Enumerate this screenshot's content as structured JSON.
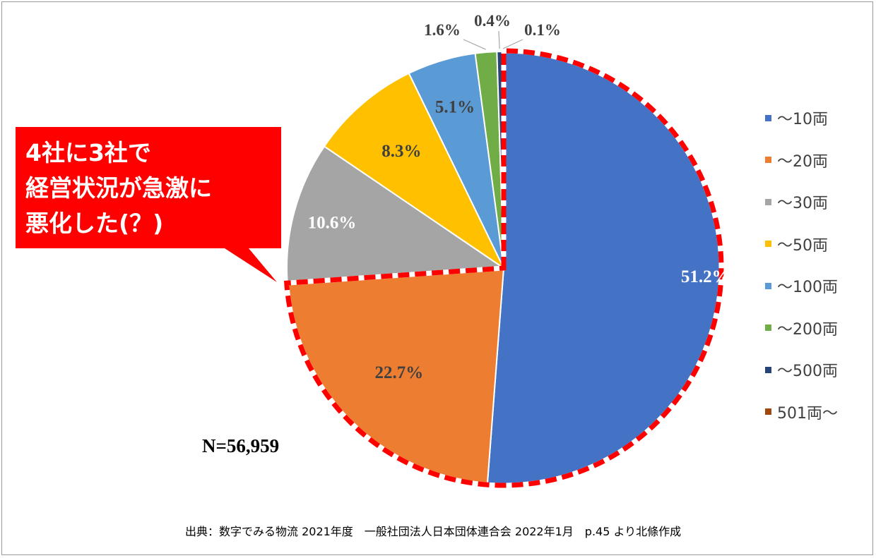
{
  "chart_data": {
    "type": "pie",
    "title": "",
    "categories": [
      "〜10両",
      "〜20両",
      "〜30両",
      "〜50両",
      "〜100両",
      "〜200両",
      "〜500両",
      "501両〜"
    ],
    "values": [
      51.2,
      22.7,
      10.6,
      8.3,
      5.1,
      1.6,
      0.4,
      0.1
    ],
    "labels": [
      "51.2%",
      "22.7%",
      "10.6%",
      "8.3%",
      "5.1%",
      "1.6%",
      "0.4%",
      "0.1%"
    ],
    "colors": [
      "#4472c4",
      "#ed7d31",
      "#a5a5a5",
      "#ffc000",
      "#5b9bd5",
      "#70ad47",
      "#264478",
      "#9e480e"
    ],
    "label_colors": [
      "#ffffff",
      "#404040",
      "#ffffff",
      "#404040",
      "#404040",
      "#404040",
      "#404040",
      "#404040"
    ],
    "highlight_categories": [
      "〜10両",
      "〜20両"
    ],
    "highlight_color": "#ff0000",
    "legend_position": "right",
    "n_label": "N=56,959"
  },
  "callout": {
    "lines": [
      "4社に3社で",
      "経営状況が急激に",
      "悪化した(？)"
    ],
    "background": "#ff0000",
    "text_color": "#ffffff"
  },
  "source": "出典：数字でみる物流 2021年度　一般社団法人日本団体連合会 2022年1月　p.45 より北條作成"
}
